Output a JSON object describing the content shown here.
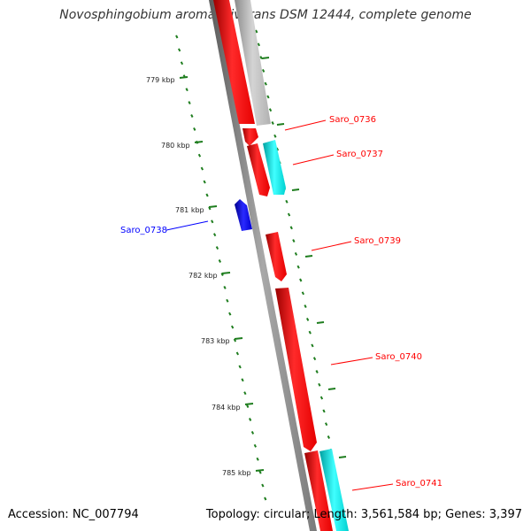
{
  "title": "Novosphingobium aromaticivorans DSM 12444, complete genome",
  "accession_text": "Accession: NC_007794",
  "summary_text": "Topology: circular; Length: 3,561,584 bp; Genes: 3,397",
  "colors": {
    "backbone": "#777777",
    "forward_gene": "#ff0000",
    "reverse_gene": "#0000ff",
    "tick": "#1e7d1e",
    "cyan_feature": "#00e5e5",
    "gray_feature": "#c0c0c0"
  },
  "ticks": [
    {
      "label": "779 kbp"
    },
    {
      "label": "780 kbp"
    },
    {
      "label": "781 kbp"
    },
    {
      "label": "782 kbp"
    },
    {
      "label": "783 kbp"
    },
    {
      "label": "784 kbp"
    },
    {
      "label": "785 kbp"
    }
  ],
  "genes": [
    {
      "id": "upstream_red",
      "label": "",
      "strand": "forward",
      "color": "red"
    },
    {
      "id": "upstream_gray",
      "label": "",
      "strand": "forward",
      "color": "gray"
    },
    {
      "id": "Saro_0736",
      "label": "Saro_0736",
      "strand": "forward",
      "color": "red"
    },
    {
      "id": "Saro_0737",
      "label": "Saro_0737",
      "strand": "forward",
      "color": "red"
    },
    {
      "id": "Saro_0737_cds",
      "label": "",
      "strand": "forward",
      "color": "cyan"
    },
    {
      "id": "Saro_0738",
      "label": "Saro_0738",
      "strand": "reverse",
      "color": "blue"
    },
    {
      "id": "Saro_0739",
      "label": "Saro_0739",
      "strand": "forward",
      "color": "red"
    },
    {
      "id": "Saro_0740",
      "label": "Saro_0740",
      "strand": "forward",
      "color": "red"
    },
    {
      "id": "Saro_0741",
      "label": "Saro_0741",
      "strand": "forward",
      "color": "red"
    },
    {
      "id": "Saro_0741_cds",
      "label": "",
      "strand": "forward",
      "color": "cyan"
    }
  ]
}
